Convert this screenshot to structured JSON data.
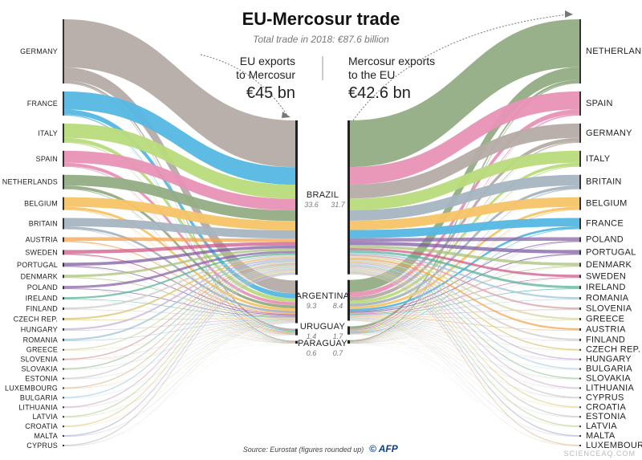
{
  "title": "EU-Mercosur trade",
  "subtitle": "Total trade in 2018: €87.6 billion",
  "left_heading": [
    "EU exports",
    "to Mercosur"
  ],
  "left_total": "€45 bn",
  "right_heading": [
    "Mercosur exports",
    "to the EU"
  ],
  "right_total": "€42.6 bn",
  "source": "Source: Eurostat (figures rounded up)",
  "logo": "© AFP",
  "watermark": "SCIENCEAQ.COM",
  "chart_data": {
    "type": "sankey",
    "title": "EU-Mercosur trade",
    "subtitle": "Total trade in 2018: €87.6 billion",
    "unit": "€ bn",
    "eu_exporters": [
      {
        "name": "GERMANY",
        "color": "#b5aca6"
      },
      {
        "name": "FRANCE",
        "color": "#55b8e3"
      },
      {
        "name": "ITALY",
        "color": "#b9db7c"
      },
      {
        "name": "SPAIN",
        "color": "#e892b6"
      },
      {
        "name": "NETHERLANDS",
        "color": "#93ad84"
      },
      {
        "name": "BELGIUM",
        "color": "#f7c468"
      },
      {
        "name": "BRITAIN",
        "color": "#a5b5c0"
      },
      {
        "name": "AUSTRIA",
        "color": "#f3a44e"
      },
      {
        "name": "SWEDEN",
        "color": "#cf5a89"
      },
      {
        "name": "PORTUGAL",
        "color": "#7e5ca4"
      },
      {
        "name": "DENMARK",
        "color": "#a9c27a"
      },
      {
        "name": "POLAND",
        "color": "#8a65a8"
      },
      {
        "name": "IRELAND",
        "color": "#59b39b"
      },
      {
        "name": "FINLAND",
        "color": "#cccccc"
      },
      {
        "name": "CZECH REP.",
        "color": "#d9c472"
      },
      {
        "name": "HUNGARY",
        "color": "#c7b2d4"
      },
      {
        "name": "ROMANIA",
        "color": "#9fc3d9"
      },
      {
        "name": "GREECE",
        "color": "#d6d6a4"
      },
      {
        "name": "SLOVENIA",
        "color": "#d8a3a3"
      },
      {
        "name": "SLOVAKIA",
        "color": "#a3c8a3"
      },
      {
        "name": "ESTONIA",
        "color": "#c9c9c9"
      },
      {
        "name": "LUXEMBOURG",
        "color": "#e0c5a0"
      },
      {
        "name": "BULGARIA",
        "color": "#b0d4e0"
      },
      {
        "name": "LITHUANIA",
        "color": "#d7b8cf"
      },
      {
        "name": "LATVIA",
        "color": "#c3d7a6"
      },
      {
        "name": "CROATIA",
        "color": "#e5d39a"
      },
      {
        "name": "MALTA",
        "color": "#b8b8d8"
      },
      {
        "name": "CYPRUS",
        "color": "#c9c9c9"
      }
    ],
    "mercosur": [
      {
        "name": "BRAZIL",
        "imports_from_eu": 33.6,
        "exports_to_eu": 31.7
      },
      {
        "name": "ARGENTINA",
        "imports_from_eu": 9.3,
        "exports_to_eu": 8.4
      },
      {
        "name": "URUGUAY",
        "imports_from_eu": 1.4,
        "exports_to_eu": 1.7
      },
      {
        "name": "PARAGUAY",
        "imports_from_eu": 0.6,
        "exports_to_eu": 0.7
      }
    ],
    "eu_importers": [
      {
        "name": "NETHERLANDS",
        "color": "#93ad84"
      },
      {
        "name": "SPAIN",
        "color": "#e892b6"
      },
      {
        "name": "GERMANY",
        "color": "#b5aca6"
      },
      {
        "name": "ITALY",
        "color": "#b9db7c"
      },
      {
        "name": "BRITAIN",
        "color": "#a5b5c0"
      },
      {
        "name": "BELGIUM",
        "color": "#f7c468"
      },
      {
        "name": "FRANCE",
        "color": "#55b8e3"
      },
      {
        "name": "POLAND",
        "color": "#8a65a8"
      },
      {
        "name": "PORTUGAL",
        "color": "#7e5ca4"
      },
      {
        "name": "DENMARK",
        "color": "#a9c27a"
      },
      {
        "name": "SWEDEN",
        "color": "#cf5a89"
      },
      {
        "name": "IRELAND",
        "color": "#59b39b"
      },
      {
        "name": "ROMANIA",
        "color": "#9fc3d9"
      },
      {
        "name": "SLOVENIA",
        "color": "#d8a3a3"
      },
      {
        "name": "GREECE",
        "color": "#d6d6a4"
      },
      {
        "name": "AUSTRIA",
        "color": "#f3a44e"
      },
      {
        "name": "FINLAND",
        "color": "#cccccc"
      },
      {
        "name": "CZECH REP.",
        "color": "#d9c472"
      },
      {
        "name": "HUNGARY",
        "color": "#c7b2d4"
      },
      {
        "name": "BULGARIA",
        "color": "#b0d4e0"
      },
      {
        "name": "SLOVAKIA",
        "color": "#a3c8a3"
      },
      {
        "name": "LITHUANIA",
        "color": "#d7b8cf"
      },
      {
        "name": "CYPRUS",
        "color": "#c9c9c9"
      },
      {
        "name": "CROATIA",
        "color": "#e5d39a"
      },
      {
        "name": "ESTONIA",
        "color": "#c9c9c9"
      },
      {
        "name": "LATVIA",
        "color": "#c3d7a6"
      },
      {
        "name": "MALTA",
        "color": "#b8b8d8"
      },
      {
        "name": "LUXEMBOURG",
        "color": "#e0c5a0"
      }
    ]
  }
}
